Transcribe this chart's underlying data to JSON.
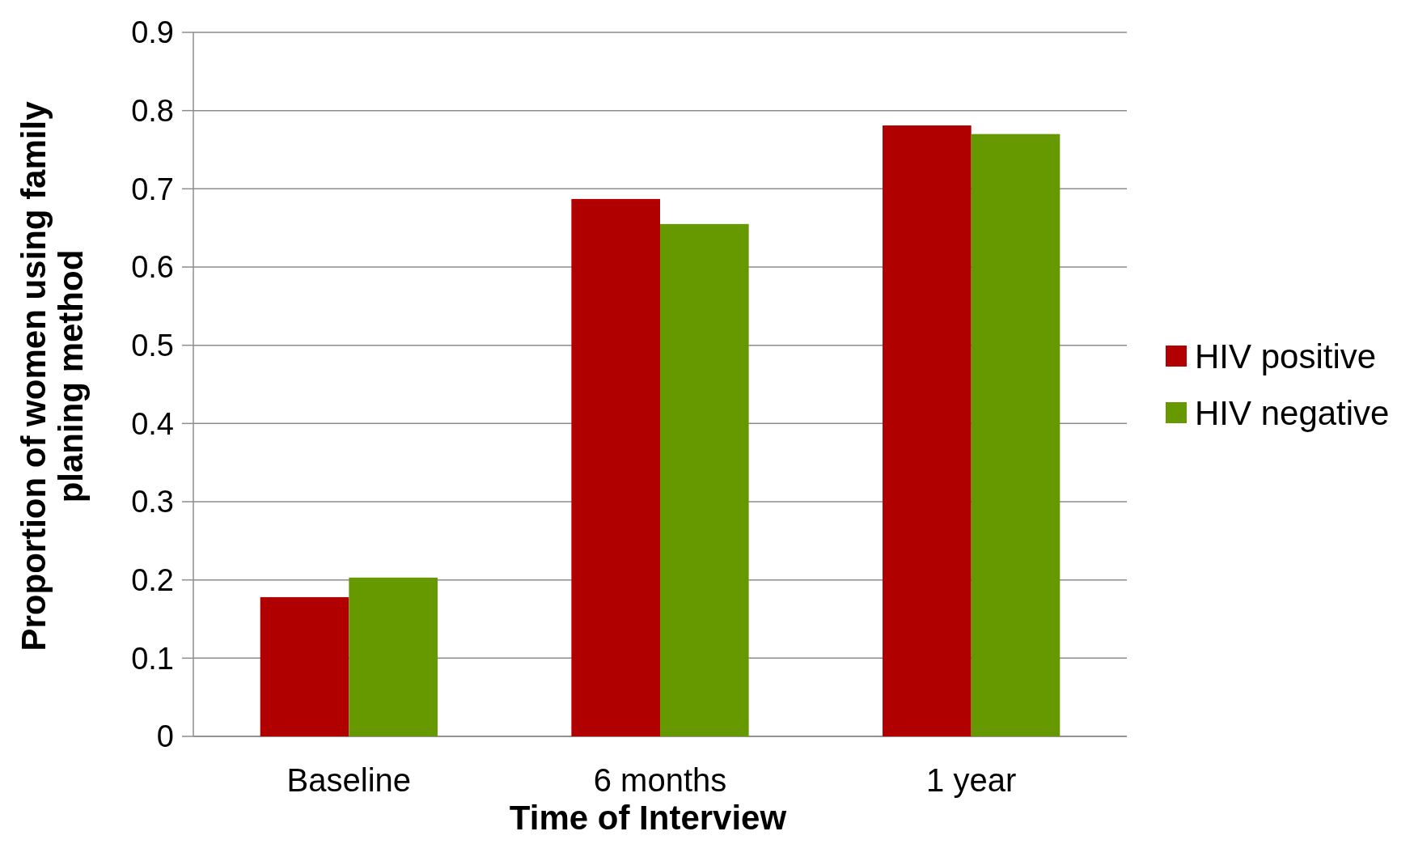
{
  "chart_data": {
    "type": "bar",
    "xlabel": "Time of Interview",
    "ylabel": "Proportion of women using family planing method",
    "categories": [
      "Baseline",
      "6 months",
      "1 year"
    ],
    "series": [
      {
        "name": "HIV positive",
        "color": "#b00000",
        "values": [
          0.178,
          0.687,
          0.781
        ]
      },
      {
        "name": "HIV negative",
        "color": "#669900",
        "values": [
          0.203,
          0.655,
          0.77
        ]
      }
    ],
    "ylim": [
      0,
      0.9
    ],
    "yticks": [
      0,
      0.1,
      0.2,
      0.3,
      0.4,
      0.5,
      0.6,
      0.7,
      0.8,
      0.9
    ],
    "grid": "y",
    "legend": "right"
  }
}
